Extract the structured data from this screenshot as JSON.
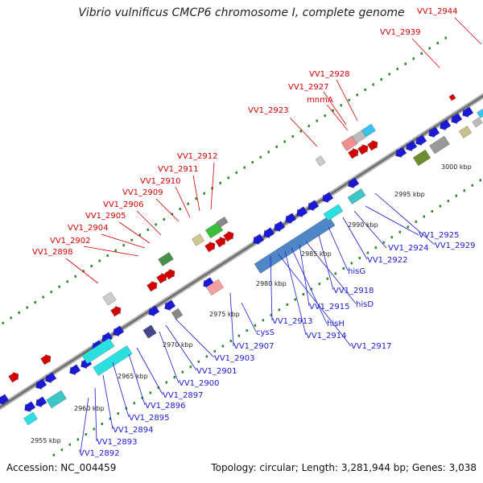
{
  "title": "Vibrio vulnificus CMCP6 chromosome I, complete genome",
  "accession_label": "Accession: NC_004459",
  "info_label": "Topology: circular; Length: 3,281,944 bp; Genes: 3,038",
  "colors": {
    "forward": "#d40000",
    "reverse": "#1a1ad6",
    "backbone": "#999999",
    "tick": "#2a8a2a"
  },
  "scale_labels": [
    "2955 kbp",
    "2960 kbp",
    "2965 kbp",
    "2970 kbp",
    "2975 kbp",
    "2980 kbp",
    "2985 kbp",
    "2990 kbp",
    "2995 kbp",
    "3000 kbp"
  ],
  "forward_genes": [
    "VV1_2944",
    "VV1_2939",
    "VV1_2928",
    "VV1_2927",
    "mnmA",
    "VV1_2923",
    "VV1_2912",
    "VV1_2911",
    "VV1_2910",
    "VV1_2909",
    "VV1_2906",
    "VV1_2905",
    "VV1_2904",
    "VV1_2902",
    "VV1_2898"
  ],
  "reverse_genes": [
    "VV1_2925",
    "VV1_2929",
    "VV1_2924",
    "VV1_2922",
    "hisG",
    "VV1_2918",
    "hisD",
    "VV1_2915",
    "hisH",
    "VV1_2914",
    "VV1_2917",
    "VV1_2913",
    "cysS",
    "VV1_2907",
    "VV1_2903",
    "VV1_2901",
    "VV1_2900",
    "VV1_2897",
    "VV1_2896",
    "VV1_2895",
    "VV1_2894",
    "VV1_2893",
    "VV1_2892"
  ]
}
